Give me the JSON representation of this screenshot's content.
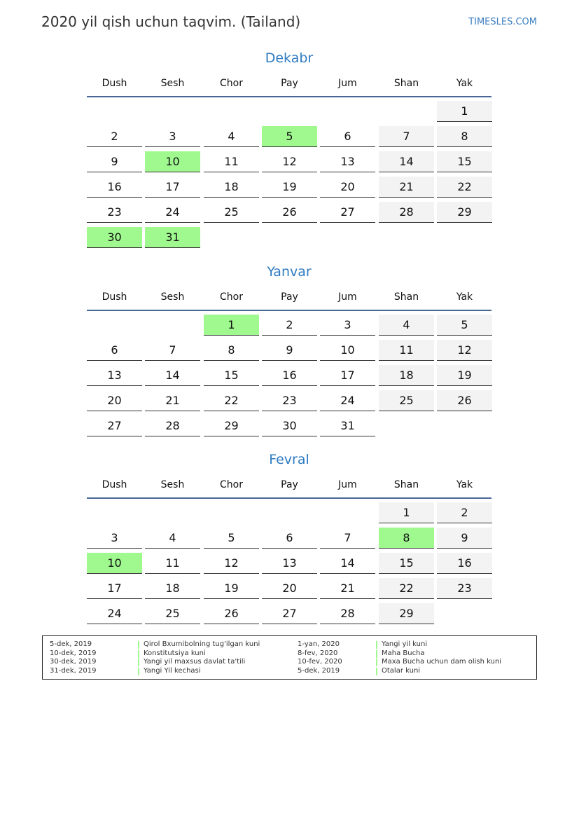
{
  "header": {
    "title": "2020 yil qish uchun taqvim. (Tailand)",
    "brand": "TIMESLES.COM"
  },
  "weekdays": [
    "Dush",
    "Sesh",
    "Chor",
    "Pay",
    "Jum",
    "Shan",
    "Yak"
  ],
  "months": [
    {
      "name": "Dekabr",
      "offset": 6,
      "days": 31,
      "holidays": [
        5,
        10,
        30,
        31
      ]
    },
    {
      "name": "Yanvar",
      "offset": 2,
      "days": 31,
      "holidays": [
        1
      ]
    },
    {
      "name": "Fevral",
      "offset": 5,
      "days": 29,
      "holidays": [
        8,
        10
      ]
    }
  ],
  "colors": {
    "holiday": "#9ff98f",
    "weekend": "#f3f3f3",
    "accent": "#2f7bc2"
  },
  "legend": [
    {
      "date": "5-dek, 2019",
      "name": "Qirol Bxumibolning tug'ilgan kuni"
    },
    {
      "date": "10-dek, 2019",
      "name": "Konstitutsiya kuni"
    },
    {
      "date": "30-dek, 2019",
      "name": "Yangi yil maxsus davlat ta'tili"
    },
    {
      "date": "31-dek, 2019",
      "name": "Yangi Yil kechasi"
    },
    {
      "date": "1-yan, 2020",
      "name": "Yangi yil kuni"
    },
    {
      "date": "8-fev, 2020",
      "name": "Maha Bucha"
    },
    {
      "date": "10-fev, 2020",
      "name": "Maxa Bucha uchun dam olish kuni"
    },
    {
      "date": "5-dek, 2019",
      "name": "Otalar kuni"
    }
  ]
}
